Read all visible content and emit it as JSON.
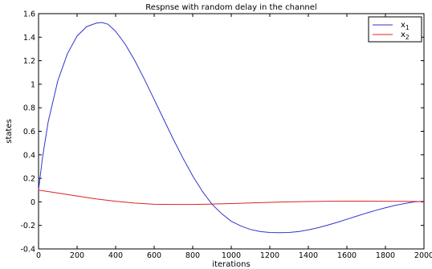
{
  "chart_data": {
    "type": "line",
    "title": "Respnse with random delay in the channel",
    "xlabel": "iterations",
    "ylabel": "states",
    "xlim": [
      0,
      2000
    ],
    "ylim": [
      -0.4,
      1.6
    ],
    "xticks": [
      0,
      200,
      400,
      600,
      800,
      1000,
      1200,
      1400,
      1600,
      1800,
      2000
    ],
    "yticks": [
      -0.4,
      -0.2,
      0,
      0.2,
      0.4,
      0.6,
      0.8,
      1,
      1.2,
      1.4,
      1.6
    ],
    "xtick_labels": [
      "0",
      "200",
      "400",
      "600",
      "800",
      "1000",
      "1200",
      "1400",
      "1600",
      "1800",
      "2000"
    ],
    "ytick_labels": [
      "-0.4",
      "-0.2",
      "0",
      "0.2",
      "0.4",
      "0.6",
      "0.8",
      "1",
      "1.2",
      "1.4",
      "1.6"
    ],
    "grid": false,
    "legend_position": "top-right",
    "series": [
      {
        "name": "x1",
        "color": "#3333cc",
        "x": [
          0,
          20,
          50,
          100,
          150,
          200,
          250,
          300,
          330,
          360,
          400,
          450,
          500,
          550,
          600,
          650,
          700,
          750,
          800,
          850,
          900,
          950,
          1000,
          1050,
          1100,
          1150,
          1200,
          1250,
          1300,
          1350,
          1400,
          1450,
          1500,
          1550,
          1600,
          1650,
          1700,
          1750,
          1800,
          1850,
          1900,
          1950,
          2000
        ],
        "y": [
          0.1,
          0.37,
          0.68,
          1.03,
          1.26,
          1.41,
          1.49,
          1.52,
          1.525,
          1.51,
          1.45,
          1.34,
          1.2,
          1.04,
          0.87,
          0.7,
          0.53,
          0.37,
          0.22,
          0.09,
          -0.02,
          -0.1,
          -0.165,
          -0.205,
          -0.235,
          -0.252,
          -0.26,
          -0.262,
          -0.26,
          -0.252,
          -0.238,
          -0.22,
          -0.198,
          -0.174,
          -0.148,
          -0.122,
          -0.096,
          -0.072,
          -0.05,
          -0.03,
          -0.014,
          0.0,
          0.005
        ]
      },
      {
        "name": "x2",
        "color": "#dd2222",
        "x": [
          0,
          100,
          200,
          300,
          400,
          500,
          600,
          700,
          800,
          900,
          1000,
          1100,
          1200,
          1300,
          1400,
          1500,
          1600,
          1700,
          1800,
          1900,
          2000
        ],
        "y": [
          0.1,
          0.075,
          0.05,
          0.025,
          0.005,
          -0.01,
          -0.02,
          -0.022,
          -0.022,
          -0.019,
          -0.014,
          -0.009,
          -0.004,
          0.0,
          0.003,
          0.005,
          0.006,
          0.006,
          0.005,
          0.004,
          0.003
        ]
      }
    ],
    "legend": [
      {
        "label": "x",
        "subscript": "1"
      },
      {
        "label": "x",
        "subscript": "2"
      }
    ]
  }
}
